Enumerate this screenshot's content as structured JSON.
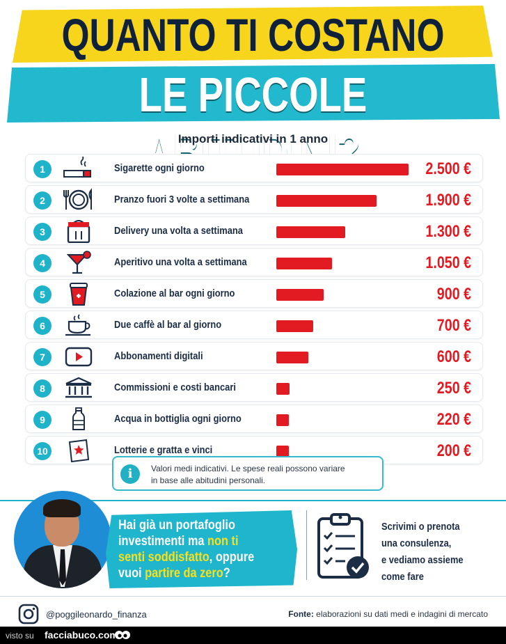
{
  "title": {
    "line1": "QUANTO TI COSTANO",
    "line2": "LE PICCOLE ABITUDINI?"
  },
  "subtitle": "Importi indicativi in 1 anno",
  "colors": {
    "bar": "#e21b23",
    "accent": "#1fb3c9",
    "yellow": "#f7d51d",
    "navy": "#10213a"
  },
  "chart_data": {
    "type": "bar",
    "orientation": "horizontal",
    "title": "QUANTO TI COSTANO LE PICCOLE ABITUDINI?",
    "subtitle": "Importi indicativi in 1 anno",
    "unit": "€",
    "xlim": [
      0,
      2500
    ],
    "grid": false,
    "categories": [
      "Sigarette ogni giorno",
      "Pranzo fuori 3 volte a settimana",
      "Delivery una volta a settimana",
      "Aperitivo una volta a settimana",
      "Colazione al bar ogni giorno",
      "Due caffè al bar al giorno",
      "Abbonamenti digitali",
      "Commissioni e costi bancari",
      "Acqua in bottiglia ogni giorno",
      "Lotterie e gratta e vinci"
    ],
    "values": [
      2500,
      1900,
      1300,
      1050,
      900,
      700,
      600,
      250,
      220,
      200
    ],
    "ranks": [
      "1",
      "2",
      "3",
      "4",
      "5",
      "6",
      "7",
      "8",
      "9",
      "10"
    ],
    "value_labels": [
      "2.500 €",
      "1.900 €",
      "1.300 €",
      "1.050 €",
      "900 €",
      "700 €",
      "600 €",
      "250 €",
      "220 €",
      "200 €"
    ],
    "icons": [
      "cigarette-icon",
      "plate-cutlery-icon",
      "delivery-bag-icon",
      "cocktail-icon",
      "coffee-cup-takeaway-icon",
      "coffee-cup-icon",
      "play-button-icon",
      "bank-icon",
      "water-bottle-icon",
      "lottery-ticket-icon"
    ]
  },
  "note": {
    "icon": "info-icon",
    "line1": "Valori medi indicativi. Le spese reali possono variare",
    "line2": "in base alle abitudini personali."
  },
  "promo": {
    "part1": "Hai già un portafoglio investimenti ma ",
    "highlight1": "non ti senti soddisfatto",
    "part2": ", oppure vuoi ",
    "highlight2": "partire da zero",
    "part3": "?",
    "cta_line1": "Scrivimi o prenota",
    "cta_line2": "una consulenza,",
    "cta_line3": "e vediamo assieme",
    "cta_line4": "come fare"
  },
  "footer": {
    "handle": "@poggileonardo_finanza",
    "fonte_label": "Fonte:",
    "fonte_text": " elaborazioni su dati medi e indagini di mercato"
  },
  "watermark": {
    "visto": "visto su",
    "site": "facciabuco.com"
  }
}
